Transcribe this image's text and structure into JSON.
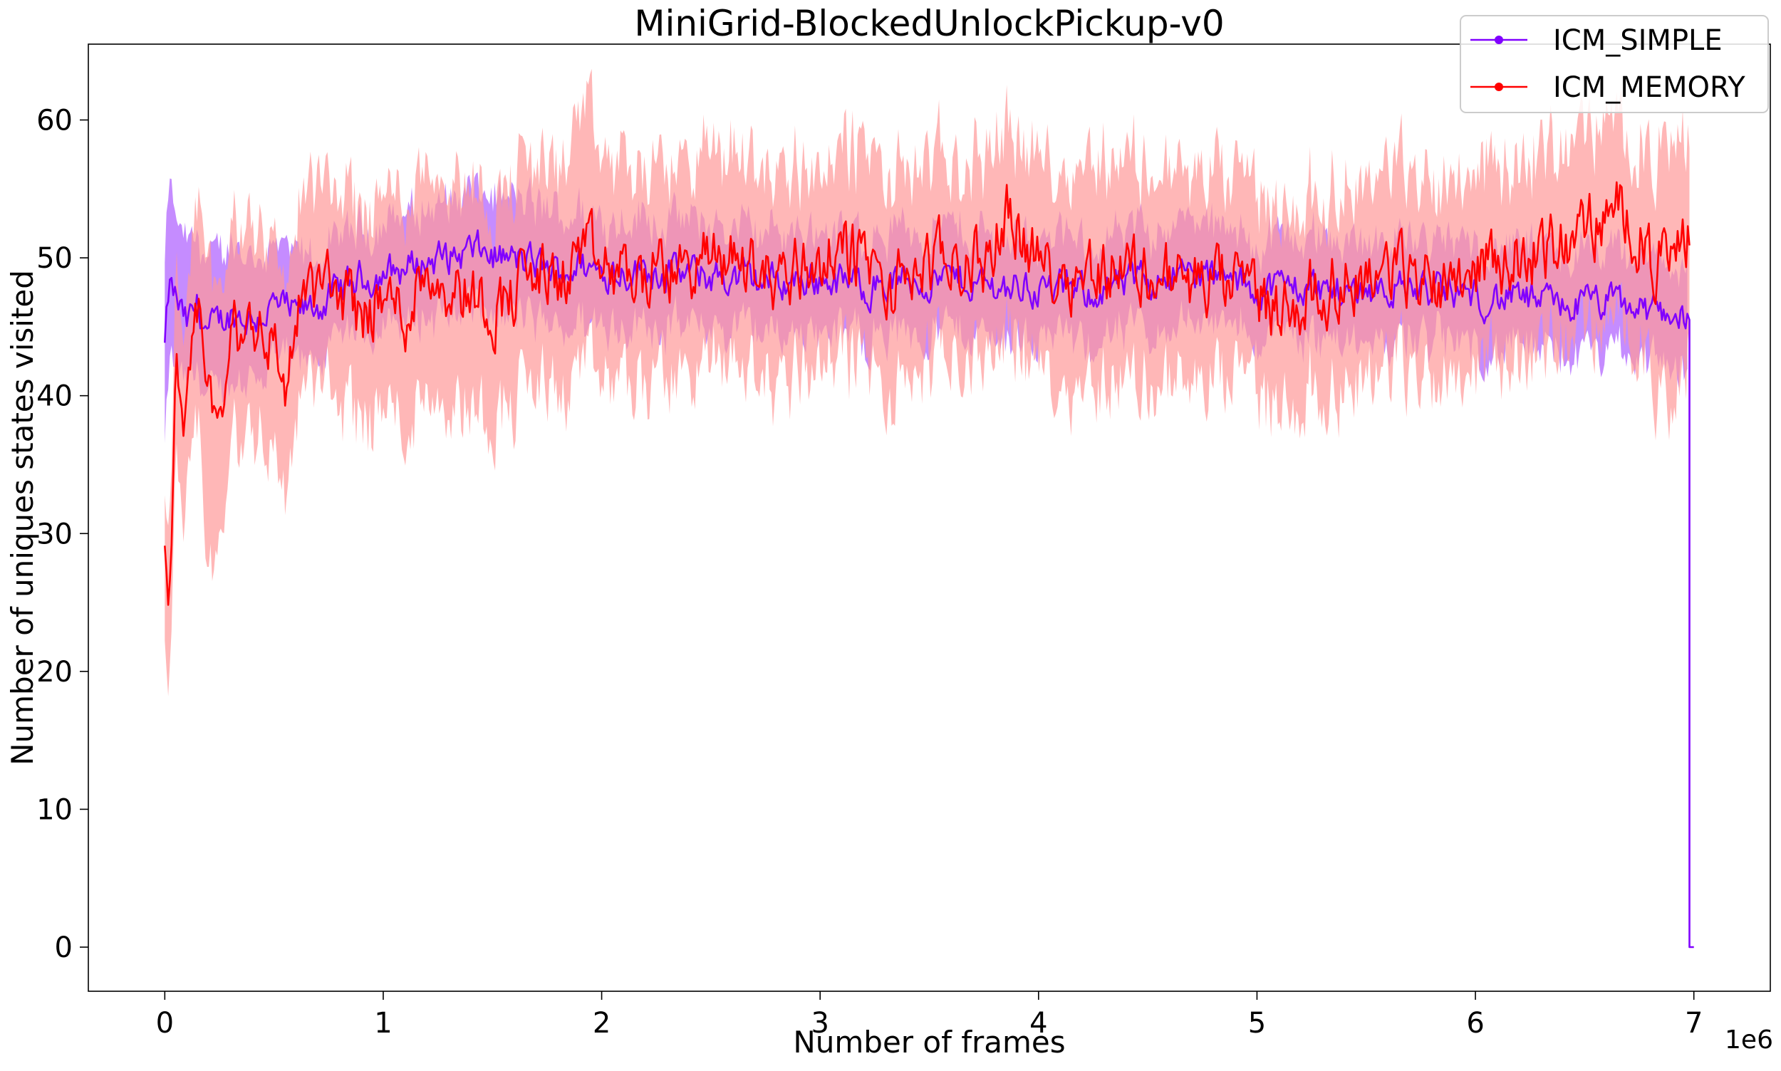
{
  "chart_data": {
    "type": "line",
    "title": "MiniGrid-BlockedUnlockPickup-v0",
    "xlabel": "Number of frames",
    "ylabel": "Number of uniques states visited",
    "x_offset_label": "1e6",
    "xlim": [
      -0.35,
      7.35
    ],
    "ylim": [
      -3.2,
      65.5
    ],
    "x_ticks": [
      0,
      1,
      2,
      3,
      4,
      5,
      6,
      7
    ],
    "y_ticks": [
      0,
      10,
      20,
      30,
      40,
      50,
      60
    ],
    "grid": false,
    "legend": {
      "position": "top-right"
    },
    "series": [
      {
        "name": "ICM_SIMPLE",
        "color": "#8000ff",
        "band_color": "#b266ff",
        "x": [
          0.0,
          0.02,
          0.05,
          0.1,
          0.15,
          0.2,
          0.3,
          0.4,
          0.5,
          0.6,
          0.7,
          0.8,
          0.9,
          1.0,
          1.1,
          1.2,
          1.3,
          1.4,
          1.5,
          1.6,
          1.7,
          1.8,
          1.9,
          2.0,
          2.2,
          2.4,
          2.6,
          2.8,
          3.0,
          3.2,
          3.4,
          3.6,
          3.8,
          4.0,
          4.2,
          4.4,
          4.6,
          4.8,
          5.0,
          5.2,
          5.4,
          5.6,
          5.8,
          6.0,
          6.2,
          6.4,
          6.6,
          6.8,
          6.9,
          6.97,
          6.98,
          7.0
        ],
        "mean": [
          43.5,
          47.8,
          47.0,
          45.0,
          46.5,
          44.5,
          46.0,
          45.5,
          46.5,
          45.8,
          46.5,
          47.5,
          48.5,
          48.8,
          49.2,
          49.8,
          50.0,
          50.5,
          50.2,
          49.8,
          49.5,
          49.0,
          49.5,
          49.0,
          49.2,
          48.8,
          48.5,
          48.3,
          48.5,
          48.0,
          48.3,
          48.5,
          48.0,
          47.8,
          47.5,
          48.0,
          49.0,
          48.5,
          47.8,
          48.0,
          47.5,
          48.0,
          47.5,
          47.2,
          47.0,
          46.5,
          46.8,
          46.0,
          46.2,
          45.5,
          0.0,
          0.0
        ],
        "lower": [
          36.5,
          43.0,
          42.0,
          41.0,
          42.0,
          40.5,
          41.5,
          42.0,
          43.0,
          42.5,
          43.5,
          44.5,
          45.5,
          45.5,
          46.0,
          46.5,
          46.5,
          46.8,
          46.5,
          46.2,
          46.0,
          45.5,
          46.0,
          45.8,
          46.0,
          45.5,
          45.5,
          45.2,
          45.5,
          45.0,
          45.2,
          45.5,
          45.0,
          44.8,
          44.5,
          45.0,
          45.8,
          45.5,
          45.0,
          45.0,
          44.5,
          45.0,
          44.5,
          44.2,
          44.0,
          43.5,
          43.8,
          43.0,
          43.2,
          42.5,
          0.0,
          0.0
        ],
        "upper": [
          48.5,
          54.8,
          52.0,
          50.0,
          51.0,
          49.0,
          50.5,
          49.5,
          50.0,
          49.2,
          49.5,
          50.5,
          51.5,
          52.0,
          52.5,
          53.0,
          53.5,
          54.0,
          53.8,
          53.4,
          53.0,
          52.5,
          53.0,
          52.2,
          52.4,
          52.0,
          51.5,
          51.4,
          51.5,
          51.0,
          51.4,
          51.5,
          51.0,
          50.8,
          50.5,
          51.0,
          52.2,
          51.5,
          50.6,
          51.0,
          50.5,
          51.0,
          50.5,
          50.2,
          50.0,
          49.5,
          49.8,
          49.0,
          49.2,
          48.5,
          0.0,
          0.0
        ]
      },
      {
        "name": "ICM_MEMORY",
        "color": "#ff0000",
        "band_color": "#ff9999",
        "x": [
          0.0,
          0.02,
          0.05,
          0.1,
          0.15,
          0.2,
          0.25,
          0.3,
          0.4,
          0.5,
          0.55,
          0.6,
          0.7,
          0.8,
          0.9,
          1.0,
          1.1,
          1.2,
          1.3,
          1.4,
          1.5,
          1.6,
          1.7,
          1.8,
          1.9,
          2.0,
          2.2,
          2.4,
          2.6,
          2.8,
          3.0,
          3.2,
          3.3,
          3.4,
          3.6,
          3.8,
          3.85,
          4.0,
          4.2,
          4.4,
          4.6,
          4.8,
          5.0,
          5.1,
          5.2,
          5.4,
          5.6,
          5.8,
          6.0,
          6.2,
          6.4,
          6.6,
          6.7,
          6.8,
          6.9,
          6.98
        ],
        "mean": [
          31.2,
          22.8,
          40.0,
          38.0,
          45.0,
          42.0,
          36.5,
          44.0,
          45.5,
          44.0,
          40.0,
          46.0,
          48.0,
          47.5,
          46.0,
          47.0,
          46.0,
          49.5,
          48.0,
          47.5,
          46.5,
          47.5,
          49.0,
          48.0,
          50.5,
          49.0,
          48.5,
          49.5,
          50.0,
          48.5,
          50.0,
          50.5,
          47.0,
          49.0,
          49.5,
          50.0,
          54.0,
          49.5,
          49.0,
          49.5,
          48.5,
          48.0,
          47.5,
          46.0,
          47.0,
          48.5,
          49.0,
          48.5,
          49.5,
          50.0,
          51.0,
          53.0,
          53.5,
          50.0,
          49.0,
          52.5
        ],
        "lower": [
          25.0,
          17.5,
          34.0,
          31.5,
          37.5,
          29.0,
          28.0,
          36.5,
          38.5,
          37.0,
          33.0,
          39.5,
          41.5,
          40.0,
          39.0,
          39.5,
          38.5,
          41.5,
          40.5,
          40.0,
          39.5,
          40.0,
          41.5,
          40.5,
          42.5,
          41.5,
          41.5,
          42.5,
          43.0,
          41.5,
          43.5,
          43.5,
          39.5,
          42.0,
          43.0,
          43.5,
          46.5,
          42.5,
          41.5,
          42.0,
          41.5,
          41.0,
          41.0,
          39.5,
          40.5,
          42.0,
          42.5,
          42.0,
          43.0,
          43.5,
          44.5,
          46.0,
          46.5,
          43.0,
          37.0,
          45.5
        ],
        "upper": [
          34.5,
          28.0,
          46.0,
          44.0,
          51.5,
          51.0,
          45.0,
          51.0,
          52.5,
          51.0,
          47.0,
          52.5,
          54.5,
          54.0,
          53.0,
          54.0,
          53.5,
          57.0,
          55.5,
          55.0,
          53.5,
          55.0,
          56.5,
          55.5,
          60.0,
          56.5,
          55.5,
          56.5,
          57.0,
          55.5,
          56.5,
          57.5,
          54.5,
          56.0,
          56.0,
          57.0,
          60.0,
          56.5,
          56.5,
          57.0,
          55.5,
          55.0,
          54.0,
          52.5,
          53.5,
          55.0,
          55.5,
          55.0,
          56.0,
          56.5,
          57.5,
          59.5,
          59.0,
          57.0,
          56.0,
          59.0
        ]
      }
    ]
  }
}
